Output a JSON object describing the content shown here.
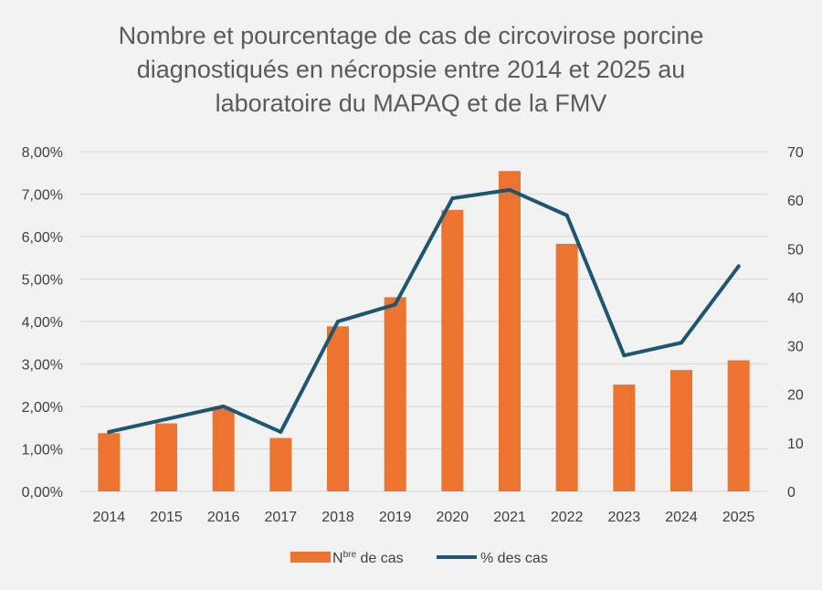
{
  "chart_data": {
    "type": "bar",
    "title_lines": [
      "Nombre et pourcentage de cas de circovirose porcine",
      "diagnostiqués en nécropsie entre 2014 et 2025 au",
      "laboratoire du MAPAQ et de la FMV"
    ],
    "categories": [
      "2014",
      "2015",
      "2016",
      "2017",
      "2018",
      "2019",
      "2020",
      "2021",
      "2022",
      "2023",
      "2024",
      "2025"
    ],
    "series": [
      {
        "name": "Nbre de cas",
        "name_main": "N",
        "name_sup": "bre",
        "name_rest": " de cas",
        "type": "bar",
        "axis": "right",
        "color": "#ed7331",
        "values": [
          12,
          14,
          17,
          11,
          34,
          40,
          58,
          66,
          51,
          22,
          25,
          27
        ]
      },
      {
        "name": "% des cas",
        "type": "line",
        "axis": "left",
        "color": "#1c5670",
        "values": [
          1.4,
          1.7,
          2.0,
          1.4,
          4.0,
          4.4,
          6.9,
          7.1,
          6.5,
          3.2,
          3.5,
          5.3
        ]
      }
    ],
    "y_left": {
      "ylim": [
        0,
        8
      ],
      "ticks": [
        0,
        1,
        2,
        3,
        4,
        5,
        6,
        7,
        8
      ],
      "tick_labels": [
        "0,00%",
        "1,00%",
        "2,00%",
        "3,00%",
        "4,00%",
        "5,00%",
        "6,00%",
        "7,00%",
        "8,00%"
      ]
    },
    "y_right": {
      "ylim": [
        0,
        70
      ],
      "ticks": [
        0,
        10,
        20,
        30,
        40,
        50,
        60,
        70
      ],
      "tick_labels": [
        "0",
        "10",
        "20",
        "30",
        "40",
        "50",
        "60",
        "70"
      ]
    },
    "grid": true,
    "legend_position": "bottom"
  }
}
